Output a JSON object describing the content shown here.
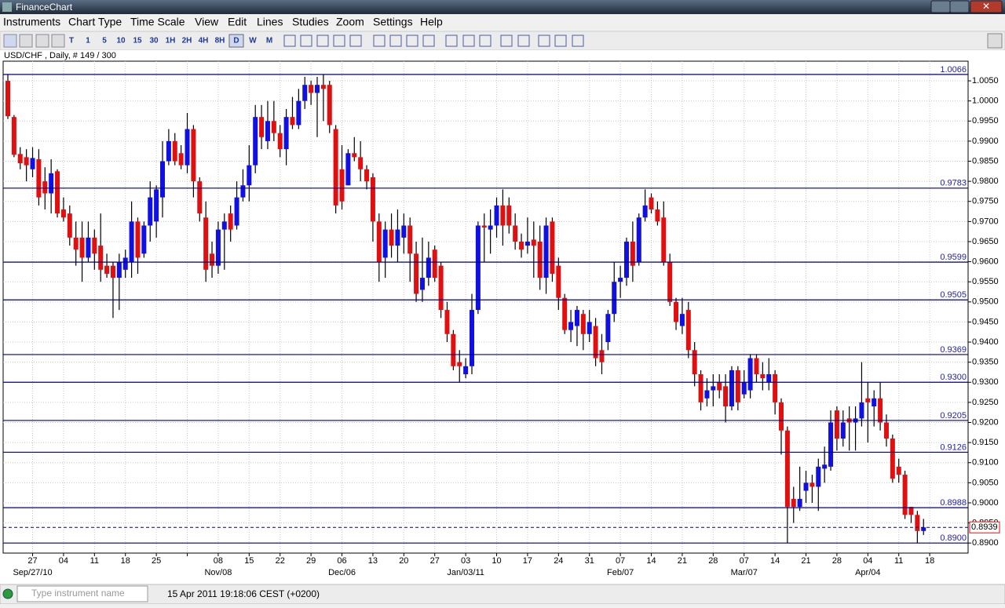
{
  "window": {
    "title": "FinanceChart"
  },
  "menu": [
    "Instruments",
    "Chart Type",
    "Time Scale",
    "View",
    "Edit",
    "Lines",
    "Studies",
    "Zoom",
    "Settings",
    "Help"
  ],
  "toolbar": [
    "T",
    "1",
    "5",
    "10",
    "15",
    "30",
    "1H",
    "2H",
    "4H",
    "8H",
    "D",
    "W",
    "M"
  ],
  "status": {
    "search_placeholder": "Type instrument name",
    "datetime": "15 Apr 2011 19:18:06  CEST (+0200)"
  },
  "chart_data": {
    "type": "candlestick",
    "title": "USD/CHF , Daily, # 149 / 300",
    "up_color": "#1010e0",
    "down_color": "#e01010",
    "level_color": "#000080",
    "grid": true,
    "ylim": [
      0.8875,
      1.0095
    ],
    "yticks": [
      {
        "value": 1.005,
        "label": "1.0050"
      },
      {
        "value": 1.0,
        "label": "1.0000"
      },
      {
        "value": 0.995,
        "label": "0.9950"
      },
      {
        "value": 0.99,
        "label": "0.9900"
      },
      {
        "value": 0.985,
        "label": "0.9850"
      },
      {
        "value": 0.98,
        "label": "0.9800"
      },
      {
        "value": 0.975,
        "label": "0.9750"
      },
      {
        "value": 0.97,
        "label": "0.9700"
      },
      {
        "value": 0.965,
        "label": "0.9650"
      },
      {
        "value": 0.96,
        "label": "0.9600"
      },
      {
        "value": 0.955,
        "label": "0.9550"
      },
      {
        "value": 0.95,
        "label": "0.9500"
      },
      {
        "value": 0.945,
        "label": "0.9450"
      },
      {
        "value": 0.94,
        "label": "0.9400"
      },
      {
        "value": 0.935,
        "label": "0.9350"
      },
      {
        "value": 0.93,
        "label": "0.9300"
      },
      {
        "value": 0.925,
        "label": "0.9250"
      },
      {
        "value": 0.92,
        "label": "0.9200"
      },
      {
        "value": 0.915,
        "label": "0.9150"
      },
      {
        "value": 0.91,
        "label": "0.9100"
      },
      {
        "value": 0.905,
        "label": "0.9050"
      },
      {
        "value": 0.9,
        "label": "0.9000"
      },
      {
        "value": 0.895,
        "label": "0.8950"
      },
      {
        "value": 0.89,
        "label": "0.8900"
      }
    ],
    "xticks": [
      "27",
      "04",
      "11",
      "18",
      "25",
      null,
      "08",
      "15",
      "22",
      "29",
      "06",
      "13",
      "20",
      "27",
      "03",
      "10",
      "17",
      "24",
      "31",
      "07",
      "14",
      "21",
      "28",
      "07",
      "14",
      "21",
      "28",
      "04",
      "11",
      "18"
    ],
    "xtick_groups": [
      "Sep/27/10",
      null,
      null,
      null,
      null,
      null,
      "Nov/08",
      null,
      null,
      null,
      "Dec/06",
      null,
      null,
      null,
      "Jan/03/11",
      null,
      null,
      null,
      null,
      "Feb/07",
      null,
      null,
      null,
      "Mar/07",
      null,
      null,
      null,
      "Apr/04",
      null,
      null
    ],
    "levels": [
      {
        "value": 1.0066,
        "label": "1.0066"
      },
      {
        "value": 0.9783,
        "label": "0.9783"
      },
      {
        "value": 0.9599,
        "label": "0.9599"
      },
      {
        "value": 0.9505,
        "label": "0.9505"
      },
      {
        "value": 0.9369,
        "label": "0.9369"
      },
      {
        "value": 0.93,
        "label": "0.9300"
      },
      {
        "value": 0.9205,
        "label": "0.9205"
      },
      {
        "value": 0.9126,
        "label": "0.9126"
      },
      {
        "value": 0.8988,
        "label": "0.8988"
      },
      {
        "value": 0.89,
        "label": "0.8900"
      }
    ],
    "current": {
      "value": 0.8939,
      "label": "0.8939"
    },
    "open": [
      1.005,
      0.996,
      0.9868,
      0.986,
      0.983,
      0.9855,
      0.98,
      0.977,
      0.9825,
      0.973,
      0.972,
      0.966,
      0.966,
      0.961,
      0.966,
      0.964,
      0.959,
      0.959,
      0.956,
      0.958,
      0.96,
      0.97,
      0.962,
      0.969,
      0.97,
      0.976,
      0.985,
      0.99,
      0.987,
      0.984,
      0.993,
      0.98,
      0.971,
      0.962,
      0.959,
      0.968,
      0.972,
      0.969,
      0.976,
      0.979,
      0.984,
      0.996,
      0.99,
      0.995,
      0.992,
      0.988,
      0.996,
      0.994,
      1.0,
      1.004,
      1.002,
      1.004,
      1.004,
      0.993,
      0.983,
      0.979,
      0.987,
      0.986,
      0.983,
      0.981,
      0.97,
      0.961,
      0.968,
      0.964,
      0.966,
      0.969,
      0.962,
      0.953,
      0.956,
      0.963,
      0.959,
      0.948,
      0.942,
      0.935,
      0.932,
      0.934,
      0.948,
      0.969,
      0.968,
      0.969,
      0.974,
      0.974,
      0.969,
      0.965,
      0.964,
      0.9655,
      0.965,
      0.956,
      0.97,
      0.959,
      0.951,
      0.943,
      0.944,
      0.947,
      0.942,
      0.944,
      0.938,
      0.94,
      0.947,
      0.955,
      0.956,
      0.965,
      0.96,
      0.971,
      0.976,
      0.973,
      0.971,
      0.96,
      0.95,
      0.944,
      0.948,
      0.938,
      0.932,
      0.926,
      0.928,
      0.93,
      0.929,
      0.924,
      0.933,
      0.927,
      0.928,
      0.936,
      0.932,
      0.93,
      0.932,
      0.925,
      0.918,
      0.901,
      0.899,
      0.903,
      0.905,
      0.904,
      0.9085,
      0.909,
      0.923,
      0.916,
      0.921,
      0.92,
      0.921,
      0.926,
      0.924,
      0.926,
      0.92,
      0.916,
      0.909,
      0.907,
      0.899,
      0.897,
      0.893
    ],
    "high": [
      1.0066,
      0.9965,
      0.9885,
      0.988,
      0.9885,
      0.988,
      0.9835,
      0.9855,
      0.983,
      0.976,
      0.974,
      0.97,
      0.97,
      0.97,
      0.968,
      0.972,
      0.962,
      0.96,
      0.962,
      0.963,
      0.975,
      0.971,
      0.97,
      0.98,
      0.979,
      0.99,
      0.993,
      0.992,
      0.989,
      0.997,
      0.994,
      0.981,
      0.975,
      0.965,
      0.97,
      0.972,
      0.974,
      0.98,
      0.983,
      0.989,
      0.999,
      0.999,
      1.0,
      1.0,
      0.994,
      0.998,
      1.001,
      1.003,
      1.006,
      1.005,
      1.006,
      1.0066,
      1.005,
      0.994,
      0.989,
      0.988,
      0.991,
      0.99,
      0.984,
      0.982,
      0.972,
      0.97,
      0.972,
      0.973,
      0.972,
      0.971,
      0.965,
      0.966,
      0.965,
      0.964,
      0.96,
      0.95,
      0.943,
      0.938,
      0.936,
      0.952,
      0.97,
      0.972,
      0.973,
      0.976,
      0.978,
      0.976,
      0.972,
      0.967,
      0.971,
      0.97,
      0.969,
      0.971,
      0.971,
      0.961,
      0.952,
      0.948,
      0.949,
      0.948,
      0.948,
      0.946,
      0.942,
      0.948,
      0.96,
      0.959,
      0.966,
      0.97,
      0.972,
      0.978,
      0.977,
      0.975,
      0.975,
      0.962,
      0.951,
      0.951,
      0.95,
      0.94,
      0.933,
      0.931,
      0.932,
      0.932,
      0.932,
      0.934,
      0.934,
      0.933,
      0.937,
      0.937,
      0.935,
      0.936,
      0.933,
      0.926,
      0.919,
      0.904,
      0.909,
      0.908,
      0.907,
      0.911,
      0.914,
      0.923,
      0.924,
      0.923,
      0.924,
      0.924,
      0.935,
      0.93,
      0.928,
      0.93,
      0.922,
      0.917,
      0.911,
      0.908,
      0.899,
      0.898,
      0.896
    ],
    "low": [
      0.9955,
      0.986,
      0.983,
      0.98,
      0.981,
      0.974,
      0.973,
      0.972,
      0.971,
      0.97,
      0.964,
      0.959,
      0.955,
      0.96,
      0.958,
      0.955,
      0.956,
      0.946,
      0.948,
      0.956,
      0.956,
      0.957,
      0.961,
      0.965,
      0.966,
      0.971,
      0.984,
      0.984,
      0.983,
      0.982,
      0.976,
      0.97,
      0.955,
      0.956,
      0.957,
      0.958,
      0.965,
      0.968,
      0.975,
      0.975,
      0.982,
      0.988,
      0.988,
      0.99,
      0.986,
      0.984,
      0.993,
      0.993,
      0.998,
      0.999,
      0.991,
      0.995,
      0.992,
      0.972,
      0.973,
      0.979,
      0.985,
      0.98,
      0.978,
      0.965,
      0.955,
      0.956,
      0.961,
      0.96,
      0.962,
      0.955,
      0.95,
      0.95,
      0.954,
      0.955,
      0.946,
      0.94,
      0.933,
      0.93,
      0.931,
      0.932,
      0.947,
      0.96,
      0.962,
      0.966,
      0.964,
      0.967,
      0.963,
      0.961,
      0.962,
      0.956,
      0.953,
      0.952,
      0.955,
      0.948,
      0.942,
      0.94,
      0.939,
      0.938,
      0.94,
      0.934,
      0.932,
      0.938,
      0.945,
      0.951,
      0.954,
      0.955,
      0.959,
      0.97,
      0.972,
      0.969,
      0.959,
      0.949,
      0.943,
      0.942,
      0.936,
      0.929,
      0.923,
      0.924,
      0.924,
      0.926,
      0.92,
      0.923,
      0.923,
      0.926,
      0.926,
      0.93,
      0.928,
      0.928,
      0.922,
      0.912,
      0.89,
      0.895,
      0.898,
      0.9,
      0.9,
      0.898,
      0.905,
      0.908,
      0.913,
      0.914,
      0.913,
      0.913,
      0.919,
      0.915,
      0.919,
      0.918,
      0.914,
      0.905,
      0.905,
      0.896,
      0.895,
      0.89,
      0.892
    ],
    "close": [
      0.9962,
      0.9866,
      0.9845,
      0.984,
      0.9858,
      0.976,
      0.977,
      0.982,
      0.972,
      0.971,
      0.966,
      0.963,
      0.961,
      0.966,
      0.962,
      0.958,
      0.957,
      0.956,
      0.96,
      0.961,
      0.97,
      0.961,
      0.969,
      0.976,
      0.978,
      0.985,
      0.99,
      0.985,
      0.984,
      0.993,
      0.98,
      0.972,
      0.958,
      0.959,
      0.968,
      0.97,
      0.968,
      0.976,
      0.979,
      0.984,
      0.996,
      0.991,
      0.995,
      0.992,
      0.988,
      0.996,
      0.994,
      1.0,
      1.004,
      1.002,
      1.004,
      1.003,
      0.994,
      0.974,
      0.975,
      0.987,
      0.986,
      0.983,
      0.98,
      0.97,
      0.96,
      0.968,
      0.964,
      0.968,
      0.969,
      0.962,
      0.952,
      0.956,
      0.961,
      0.956,
      0.948,
      0.942,
      0.934,
      0.934,
      0.934,
      0.948,
      0.969,
      0.9685,
      0.969,
      0.974,
      0.969,
      0.969,
      0.965,
      0.963,
      0.965,
      0.964,
      0.956,
      0.969,
      0.957,
      0.951,
      0.943,
      0.945,
      0.948,
      0.942,
      0.945,
      0.936,
      0.935,
      0.947,
      0.955,
      0.956,
      0.965,
      0.959,
      0.971,
      0.974,
      0.973,
      0.97,
      0.96,
      0.95,
      0.945,
      0.947,
      0.938,
      0.932,
      0.925,
      0.928,
      0.929,
      0.928,
      0.924,
      0.933,
      0.925,
      0.93,
      0.936,
      0.932,
      0.931,
      0.932,
      0.925,
      0.918,
      0.899,
      0.899,
      0.901,
      0.905,
      0.904,
      0.909,
      0.9095,
      0.92,
      0.916,
      0.92,
      0.92,
      0.921,
      0.925,
      0.925,
      0.926,
      0.92,
      0.916,
      0.906,
      0.907,
      0.897,
      0.897,
      0.893,
      0.8939
    ]
  }
}
